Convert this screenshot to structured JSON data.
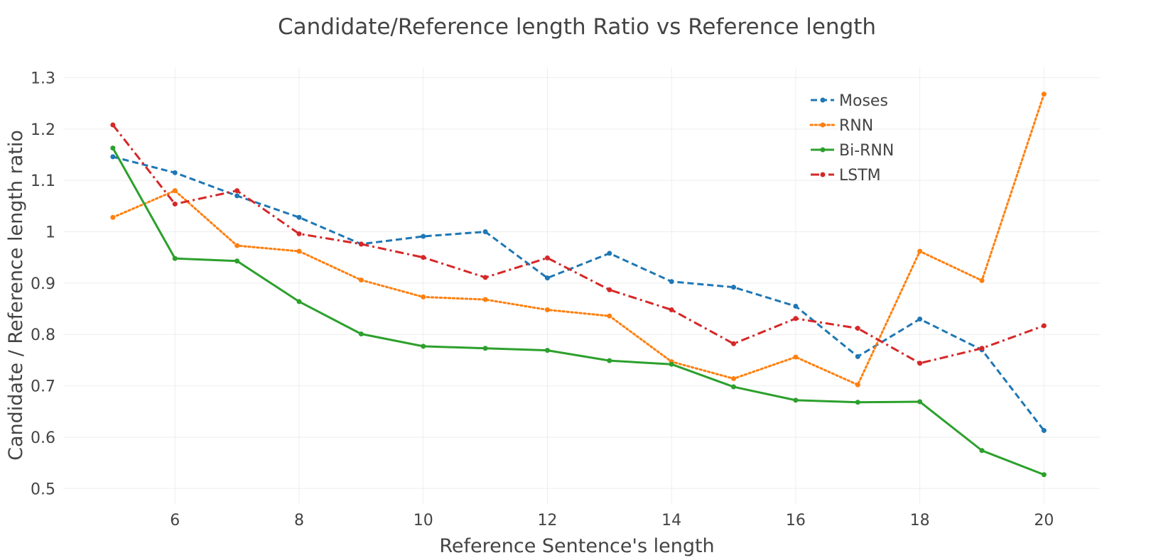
{
  "chart_data": {
    "type": "line",
    "title": "Candidate/Reference length Ratio vs Reference length",
    "xlabel": "Reference Sentence's length",
    "ylabel": "Candidate / Reference length ratio",
    "xlim": [
      4.2,
      20.9
    ],
    "ylim": [
      0.47,
      1.32
    ],
    "xticks": [
      6,
      8,
      10,
      12,
      14,
      16,
      18,
      20
    ],
    "yticks": [
      0.5,
      0.6,
      0.7,
      0.8,
      0.9,
      1,
      1.1,
      1.2,
      1.3
    ],
    "xtick_labels": [
      "6",
      "8",
      "10",
      "12",
      "14",
      "16",
      "18",
      "20"
    ],
    "ytick_labels": [
      "0.5",
      "0.6",
      "0.7",
      "0.8",
      "0.9",
      "1",
      "1.1",
      "1.2",
      "1.3"
    ],
    "grid": true,
    "legend_position": "top-right",
    "x": [
      5,
      6,
      7,
      8,
      9,
      10,
      11,
      12,
      13,
      14,
      15,
      16,
      17,
      18,
      19,
      20
    ],
    "series": [
      {
        "name": "Moses",
        "color": "#1f77b4",
        "dash": "dash",
        "values": [
          1.146,
          1.115,
          1.07,
          1.028,
          0.976,
          0.991,
          1.0,
          0.91,
          0.958,
          0.903,
          0.892,
          0.855,
          0.757,
          0.83,
          0.77,
          0.613
        ]
      },
      {
        "name": "RNN",
        "color": "#ff7f0e",
        "dash": "dot",
        "values": [
          1.028,
          1.08,
          0.973,
          0.962,
          0.906,
          0.873,
          0.868,
          0.848,
          0.836,
          0.747,
          0.714,
          0.756,
          0.702,
          0.962,
          0.905,
          1.268
        ]
      },
      {
        "name": "Bi-RNN",
        "color": "#2ca02c",
        "dash": "solid",
        "values": [
          1.163,
          0.948,
          0.943,
          0.864,
          0.801,
          0.777,
          0.773,
          0.769,
          0.749,
          0.742,
          0.698,
          0.672,
          0.668,
          0.669,
          0.574,
          0.527
        ]
      },
      {
        "name": "LSTM",
        "color": "#d62728",
        "dash": "dashdot",
        "values": [
          1.208,
          1.054,
          1.08,
          0.996,
          0.976,
          0.95,
          0.911,
          0.949,
          0.887,
          0.848,
          0.782,
          0.831,
          0.812,
          0.744,
          0.773,
          0.817
        ]
      }
    ]
  }
}
